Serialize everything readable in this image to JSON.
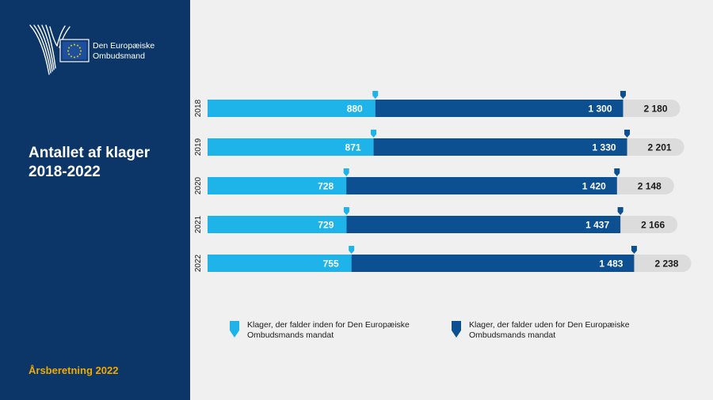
{
  "sidebar": {
    "logo": {
      "line1": "Den Europæiske",
      "line2": "Ombudsmand"
    },
    "title": {
      "line1": "Antallet af klager",
      "line2": "2018-2022"
    },
    "report_label": "Årsberetning 2022"
  },
  "colors": {
    "sidebar_bg": "#0c3668",
    "inside_mandate": "#1eb4ea",
    "outside_mandate": "#0c5092",
    "total_track": "#dcdcdc",
    "accent": "#f2a900"
  },
  "chart_data": {
    "type": "bar",
    "orientation": "horizontal",
    "stacked": true,
    "categories": [
      "2018",
      "2019",
      "2020",
      "2021",
      "2022"
    ],
    "series": [
      {
        "name": "Klager, der falder inden for Den Europæiske Ombudsmands mandat",
        "values": [
          880,
          871,
          728,
          729,
          755
        ],
        "labels": [
          "880",
          "871",
          "728",
          "729",
          "755"
        ]
      },
      {
        "name": "Klager, der falder uden for Den Europæiske Ombudsmands mandat",
        "values": [
          1300,
          1330,
          1420,
          1437,
          1483
        ],
        "labels": [
          "1 300",
          "1 330",
          "1 420",
          "1 437",
          "1 483"
        ]
      }
    ],
    "totals": [
      2180,
      2201,
      2148,
      2166,
      2238
    ],
    "total_labels": [
      "2 180",
      "2 201",
      "2 148",
      "2 166",
      "2 238"
    ],
    "xlim": [
      0,
      2500
    ],
    "grid": false,
    "legend_position": "bottom",
    "legend": {
      "inside_line1": "Klager, der falder inden for Den Europæiske",
      "inside_line2": "Ombudsmands mandat",
      "outside_line1": "Klager, der falder uden for Den Europæiske",
      "outside_line2": "Ombudsmands mandat"
    }
  }
}
